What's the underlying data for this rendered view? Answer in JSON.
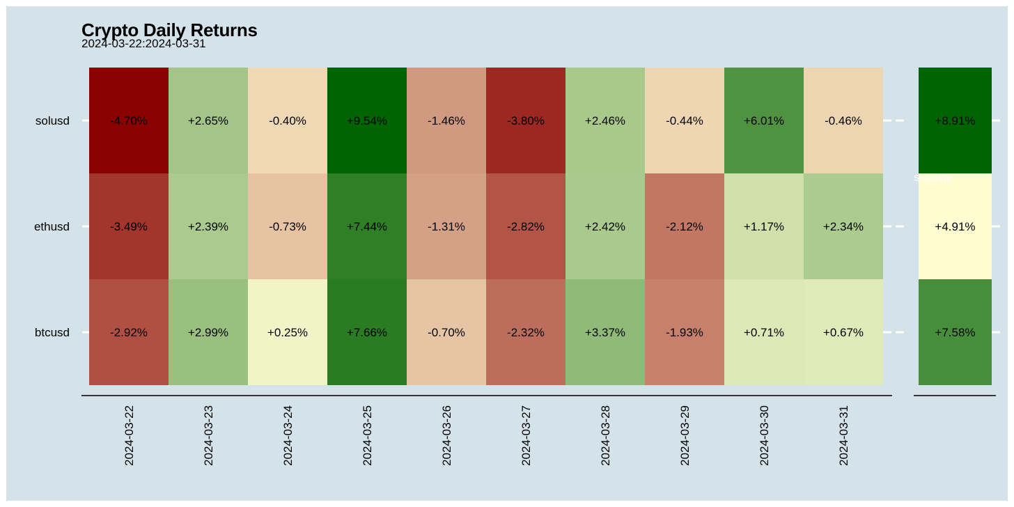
{
  "chart_data": {
    "type": "heatmap",
    "title": "Crypto Daily Returns",
    "subtitle": "2024-03-22:2024-03-31",
    "dates": [
      "2024-03-22",
      "2024-03-23",
      "2024-03-24",
      "2024-03-25",
      "2024-03-26",
      "2024-03-27",
      "2024-03-28",
      "2024-03-29",
      "2024-03-30",
      "2024-03-31"
    ],
    "assets": [
      "solusd",
      "ethusd",
      "btcusd"
    ],
    "returns": [
      [
        -4.7,
        2.65,
        -0.4,
        9.54,
        -1.46,
        -3.8,
        2.46,
        -0.44,
        6.01,
        -0.46
      ],
      [
        -3.49,
        2.39,
        -0.73,
        7.44,
        -1.31,
        -2.82,
        2.42,
        -2.12,
        1.17,
        2.34
      ],
      [
        -2.92,
        2.99,
        0.25,
        7.66,
        -0.7,
        -2.32,
        3.37,
        -1.93,
        0.71,
        0.67
      ]
    ],
    "labels": [
      [
        "-4.70%",
        "+2.65%",
        "-0.40%",
        "+9.54%",
        "-1.46%",
        "-3.80%",
        "+2.46%",
        "-0.44%",
        "+6.01%",
        "-0.46%"
      ],
      [
        "-3.49%",
        "+2.39%",
        "-0.73%",
        "+7.44%",
        "-1.31%",
        "-2.82%",
        "+2.42%",
        "-2.12%",
        "+1.17%",
        "+2.34%"
      ],
      [
        "-2.92%",
        "+2.99%",
        "+0.25%",
        "+7.66%",
        "-0.70%",
        "-2.32%",
        "+3.37%",
        "-1.93%",
        "+0.71%",
        "+0.67%"
      ]
    ],
    "totals": [
      8.91,
      4.91,
      7.58
    ],
    "total_labels": [
      "+8.91%",
      "+4.91%",
      "+7.58%"
    ],
    "watermark": "StockViz",
    "colors": {
      "background": "#d4e3ea",
      "neg_max": "#8b0000",
      "zero": "#fffcd2",
      "pos_max": "#006400"
    }
  }
}
